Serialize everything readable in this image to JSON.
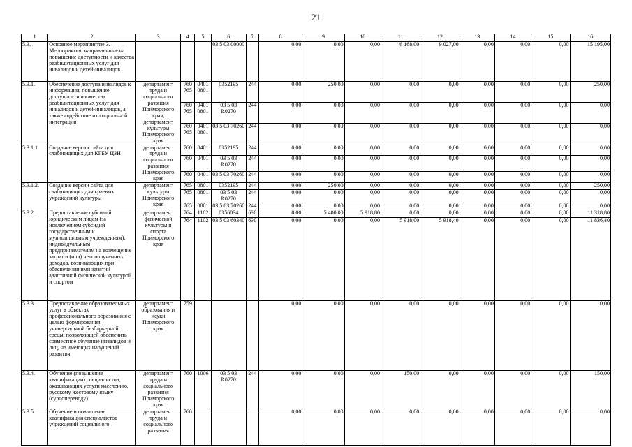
{
  "page_number": "21",
  "table": {
    "header": [
      "1",
      "2",
      "3",
      "4",
      "5",
      "6",
      "7",
      "8",
      "9",
      "10",
      "11",
      "12",
      "13",
      "14",
      "15",
      "16"
    ],
    "rows": [
      {
        "num": "5.3.",
        "name": "Основное мероприятие 3. Мероприятия, направленные на повышение доступности и качества реабилитационных услуг для инвалидов и детей-инвалидов",
        "executor": "",
        "lines": [
          {
            "grbs": "",
            "rzpr": "",
            "csr": "03 5 03 00000",
            "vr": "",
            "vals": [
              "0,00",
              "0,00",
              "0,00",
              "6 168,00",
              "9 027,00",
              "0,00",
              "0,00",
              "0,00",
              "15 195,00"
            ]
          }
        ]
      },
      {
        "num": "5.3.1.",
        "name": "Обеспечение доступа инвалидов к информации, повышение доступности и качества реабилитационных услуг для инвалидов и детей-инвалидов, а также содействие их социальной интеграции",
        "executor": "департамент труда и социального развития Приморского края, департамент культуры Приморского края",
        "lines": [
          {
            "grbs": "760\n765",
            "rzpr": "0401\n0801",
            "csr": "0352195",
            "vr": "244",
            "vals": [
              "0,00",
              "250,00",
              "0,00",
              "0,00",
              "0,00",
              "0,00",
              "0,00",
              "0,00",
              "250,00"
            ]
          },
          {
            "grbs": "760\n765",
            "rzpr": "0401\n0801",
            "csr": "03 5 03 R0270",
            "vr": "244",
            "vals": [
              "0,00",
              "0,00",
              "0,00",
              "0,00",
              "0,00",
              "0,00",
              "0,00",
              "0,00",
              "0,00"
            ]
          },
          {
            "grbs": "760\n765",
            "rzpr": "0401\n0801",
            "csr": "03 5 03 70260",
            "vr": "244",
            "vals": [
              "0,00",
              "0,00",
              "0,00",
              "0,00",
              "0,00",
              "0,00",
              "0,00",
              "0,00",
              "0,00"
            ]
          }
        ]
      },
      {
        "num": "5.3.1.1.",
        "name": "Создание версии сайта для слабовидящих для КГБУ ЦЗН",
        "executor": "департамент труда и социального развития Приморского края",
        "lines": [
          {
            "grbs": "760",
            "rzpr": "0401",
            "csr": "0352195",
            "vr": "244",
            "vals": [
              "0,00",
              "0,00",
              "0,00",
              "0,00",
              "0,00",
              "0,00",
              "0,00",
              "0,00",
              "0,00"
            ]
          },
          {
            "grbs": "760",
            "rzpr": "0401",
            "csr": "03 5 03 R0270",
            "vr": "244",
            "vals": [
              "0,00",
              "0,00",
              "0,00",
              "0,00",
              "0,00",
              "0,00",
              "0,00",
              "0,00",
              "0,00"
            ]
          },
          {
            "grbs": "760",
            "rzpr": "0401",
            "csr": "03 5 03 70260",
            "vr": "244",
            "vals": [
              "0,00",
              "0,00",
              "0,00",
              "0,00",
              "0,00",
              "0,00",
              "0,00",
              "0,00",
              "0,00"
            ]
          }
        ]
      },
      {
        "num": "5.3.1.2.",
        "name": "Создание версии сайта для слабовидящих для краевых учреждений культуры",
        "executor": "департамент культуры Приморского края",
        "lines": [
          {
            "grbs": "765",
            "rzpr": "0801",
            "csr": "0352195",
            "vr": "244",
            "vals": [
              "0,00",
              "250,00",
              "0,00",
              "0,00",
              "0,00",
              "0,00",
              "0,00",
              "0,00",
              "250,00"
            ]
          },
          {
            "grbs": "765",
            "rzpr": "0801",
            "csr": "03 5 03 R0270",
            "vr": "244",
            "vals": [
              "0,00",
              "0,00",
              "0,00",
              "0,00",
              "0,00",
              "0,00",
              "0,00",
              "0,00",
              "0,00"
            ]
          },
          {
            "grbs": "765",
            "rzpr": "0801",
            "csr": "03 5 03 70260",
            "vr": "244",
            "vals": [
              "0,00",
              "0,00",
              "0,00",
              "0,00",
              "0,00",
              "0,00",
              "0,00",
              "0,00",
              "0,00"
            ]
          }
        ]
      },
      {
        "num": "5.3.2.",
        "name": "Предоставление субсидий юридическим лицам (за исключением субсидий государственным и муниципальным учреждениям), индивидуальным предпринимателям на возмещение затрат и (или) недополученных доходов, возникающих при обеспечении ими занятий адаптивной физической культурой и спортом",
        "executor": "департамент физической культуры и спорта Приморского края",
        "lines": [
          {
            "grbs": "764",
            "rzpr": "1102",
            "csr": "0356034",
            "vr": "630",
            "vals": [
              "0,00",
              "5 400,00",
              "5 918,80",
              "0,00",
              "0,00",
              "0,00",
              "0,00",
              "0,00",
              "11 318,80"
            ]
          },
          {
            "grbs": "764",
            "rzpr": "1102",
            "csr": "03 5 03 60340",
            "vr": "630",
            "vals": [
              "0,00",
              "0,00",
              "0,00",
              "5 918,00",
              "5 918,40",
              "0,00",
              "0,00",
              "0,00",
              "11 836,40"
            ]
          }
        ]
      },
      {
        "num": "5.3.3.",
        "name": "Предоставление образовательных услуг в объектах профессионального образования с целью формирования универсальной безбарьерной среды, позволяющей обеспечить совместное обучение инвалидов и лиц, не имеющих нарушений развития",
        "executor": "департамент образования и науки Приморского края",
        "lines": [
          {
            "grbs": "759",
            "rzpr": "",
            "csr": "",
            "vr": "",
            "vals": [
              "0,00",
              "0,00",
              "0,00",
              "0,00",
              "0,00",
              "0,00",
              "0,00",
              "0,00",
              "0,00"
            ]
          }
        ]
      },
      {
        "num": "5.3.4.",
        "name": "Обучение (повышение квалификации) специалистов, оказывающих услуги населению, русскому жестовому языку (сурдопереводу)",
        "executor": "департамент труда и социального развития Приморского края",
        "lines": [
          {
            "grbs": "760",
            "rzpr": "1006",
            "csr": "03 5 03 R0270",
            "vr": "244",
            "vals": [
              "0,00",
              "0,00",
              "0,00",
              "150,00",
              "0,00",
              "0,00",
              "0,00",
              "0,00",
              "150,00"
            ]
          }
        ]
      },
      {
        "num": "5.3.5.",
        "name": "Обучение и повышение квалификации специалистов учреждений социального",
        "executor": "департамент труда и социального развития",
        "lines": [
          {
            "grbs": "760",
            "rzpr": "",
            "csr": "",
            "vr": "",
            "vals": [
              "0,00",
              "0,00",
              "0,00",
              "0,00",
              "0,00",
              "0,00",
              "0,00",
              "0,00",
              "0,00"
            ]
          }
        ]
      }
    ]
  }
}
